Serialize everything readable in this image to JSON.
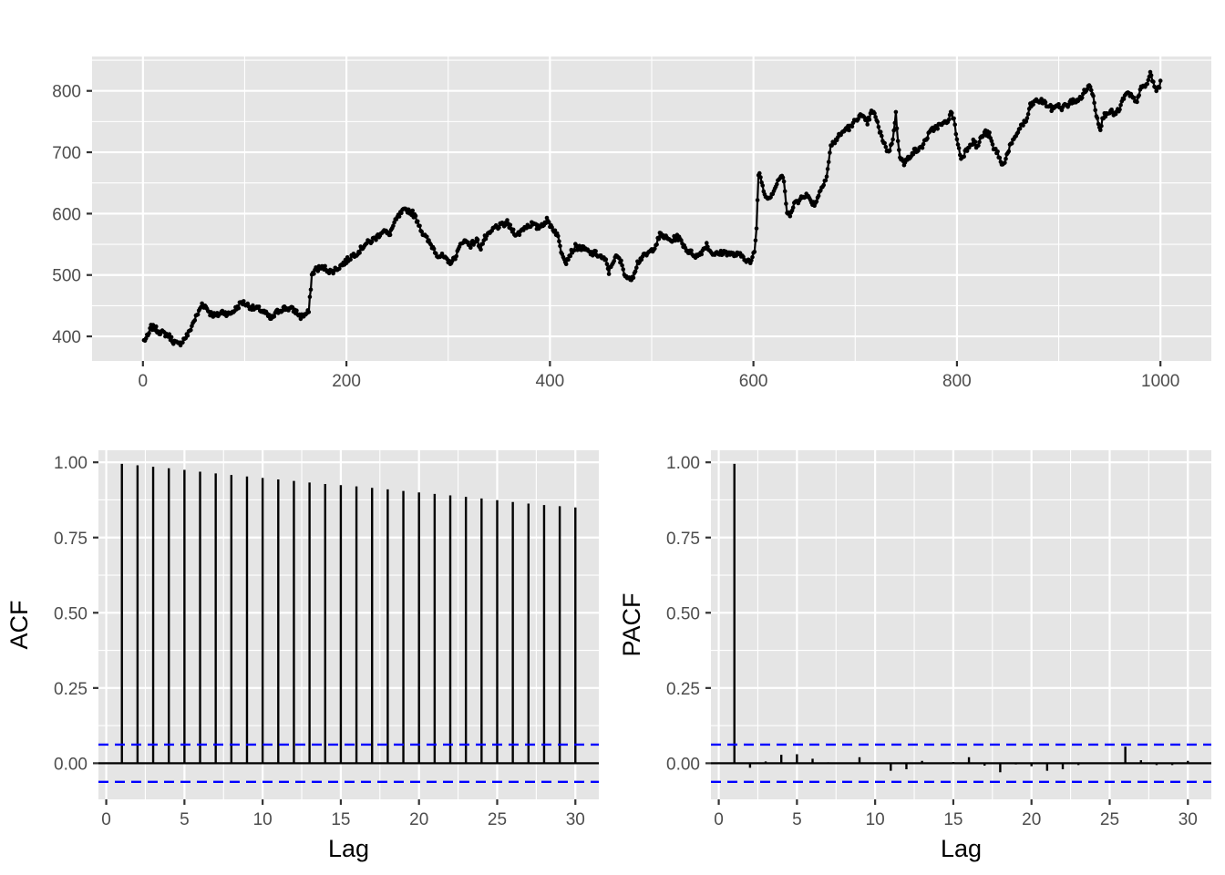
{
  "chart_data": [
    {
      "type": "line",
      "title": "",
      "xlabel": "",
      "ylabel": "",
      "xlim": [
        -50,
        1050
      ],
      "ylim": [
        360,
        856
      ],
      "x_ticks": [
        0,
        200,
        400,
        600,
        800,
        1000
      ],
      "y_ticks": [
        400,
        500,
        600,
        700,
        800
      ],
      "grid": true,
      "markers": true,
      "n_points": 1000,
      "series": [
        {
          "values_by_x": [
            [
              1,
              393
            ],
            [
              5,
              400
            ],
            [
              8,
              415
            ],
            [
              12,
              413
            ],
            [
              16,
              408
            ],
            [
              20,
              405
            ],
            [
              25,
              402
            ],
            [
              30,
              392
            ],
            [
              35,
              386
            ],
            [
              40,
              395
            ],
            [
              45,
              405
            ],
            [
              50,
              425
            ],
            [
              55,
              440
            ],
            [
              58,
              453
            ],
            [
              62,
              448
            ],
            [
              66,
              438
            ],
            [
              72,
              433
            ],
            [
              78,
              440
            ],
            [
              85,
              436
            ],
            [
              92,
              446
            ],
            [
              97,
              456
            ],
            [
              102,
              452
            ],
            [
              108,
              446
            ],
            [
              115,
              444
            ],
            [
              120,
              438
            ],
            [
              126,
              428
            ],
            [
              132,
              440
            ],
            [
              138,
              446
            ],
            [
              145,
              445
            ],
            [
              150,
              441
            ],
            [
              155,
              432
            ],
            [
              160,
              436
            ],
            [
              163,
              440
            ],
            [
              166,
              500
            ],
            [
              170,
              510
            ],
            [
              178,
              512
            ],
            [
              185,
              505
            ],
            [
              192,
              512
            ],
            [
              200,
              523
            ],
            [
              206,
              532
            ],
            [
              212,
              538
            ],
            [
              218,
              550
            ],
            [
              224,
              555
            ],
            [
              230,
              562
            ],
            [
              236,
              573
            ],
            [
              242,
              565
            ],
            [
              246,
              580
            ],
            [
              250,
              593
            ],
            [
              255,
              603
            ],
            [
              260,
              606
            ],
            [
              265,
              601
            ],
            [
              270,
              588
            ],
            [
              275,
              568
            ],
            [
              280,
              556
            ],
            [
              285,
              545
            ],
            [
              290,
              532
            ],
            [
              295,
              530
            ],
            [
              300,
              520
            ],
            [
              305,
              524
            ],
            [
              310,
              540
            ],
            [
              314,
              556
            ],
            [
              318,
              554
            ],
            [
              322,
              549
            ],
            [
              328,
              557
            ],
            [
              332,
              545
            ],
            [
              336,
              560
            ],
            [
              340,
              565
            ],
            [
              346,
              578
            ],
            [
              352,
              580
            ],
            [
              358,
              585
            ],
            [
              362,
              575
            ],
            [
              368,
              565
            ],
            [
              375,
              578
            ],
            [
              382,
              583
            ],
            [
              388,
              577
            ],
            [
              392,
              582
            ],
            [
              397,
              589
            ],
            [
              402,
              578
            ],
            [
              407,
              567
            ],
            [
              411,
              540
            ],
            [
              416,
              522
            ],
            [
              420,
              535
            ],
            [
              425,
              546
            ],
            [
              430,
              544
            ],
            [
              435,
              541
            ],
            [
              440,
              535
            ],
            [
              445,
              535
            ],
            [
              450,
              530
            ],
            [
              455,
              522
            ],
            [
              458,
              505
            ],
            [
              462,
              523
            ],
            [
              466,
              530
            ],
            [
              470,
              520
            ],
            [
              474,
              500
            ],
            [
              478,
              492
            ],
            [
              482,
              500
            ],
            [
              486,
              520
            ],
            [
              490,
              528
            ],
            [
              495,
              533
            ],
            [
              500,
              540
            ],
            [
              505,
              552
            ],
            [
              508,
              565
            ],
            [
              512,
              563
            ],
            [
              516,
              558
            ],
            [
              520,
              556
            ],
            [
              525,
              563
            ],
            [
              530,
              552
            ],
            [
              535,
              540
            ],
            [
              540,
              535
            ],
            [
              545,
              530
            ],
            [
              550,
              540
            ],
            [
              554,
              550
            ],
            [
              558,
              538
            ],
            [
              562,
              534
            ],
            [
              566,
              534
            ],
            [
              570,
              537
            ],
            [
              575,
              536
            ],
            [
              580,
              533
            ],
            [
              585,
              533
            ],
            [
              590,
              530
            ],
            [
              594,
              524
            ],
            [
              598,
              520
            ],
            [
              601,
              540
            ],
            [
              603,
              575
            ],
            [
              605,
              667
            ],
            [
              607,
              660
            ],
            [
              610,
              638
            ],
            [
              614,
              625
            ],
            [
              618,
              632
            ],
            [
              622,
              645
            ],
            [
              626,
              660
            ],
            [
              630,
              655
            ],
            [
              633,
              598
            ],
            [
              636,
              600
            ],
            [
              640,
              618
            ],
            [
              644,
              618
            ],
            [
              648,
              630
            ],
            [
              652,
              630
            ],
            [
              656,
              622
            ],
            [
              660,
              615
            ],
            [
              664,
              630
            ],
            [
              668,
              648
            ],
            [
              672,
              660
            ],
            [
              676,
              710
            ],
            [
              680,
              718
            ],
            [
              684,
              726
            ],
            [
              688,
              733
            ],
            [
              692,
              740
            ],
            [
              696,
              740
            ],
            [
              700,
              752
            ],
            [
              704,
              760
            ],
            [
              708,
              755
            ],
            [
              712,
              748
            ],
            [
              716,
              765
            ],
            [
              720,
              760
            ],
            [
              724,
              733
            ],
            [
              728,
              718
            ],
            [
              732,
              700
            ],
            [
              736,
              712
            ],
            [
              740,
              762
            ],
            [
              742,
              720
            ],
            [
              744,
              695
            ],
            [
              748,
              680
            ],
            [
              752,
              690
            ],
            [
              756,
              700
            ],
            [
              760,
              703
            ],
            [
              764,
              705
            ],
            [
              770,
              723
            ],
            [
              775,
              735
            ],
            [
              780,
              742
            ],
            [
              786,
              745
            ],
            [
              790,
              750
            ],
            [
              795,
              765
            ],
            [
              798,
              745
            ],
            [
              800,
              720
            ],
            [
              804,
              690
            ],
            [
              808,
              700
            ],
            [
              812,
              712
            ],
            [
              816,
              718
            ],
            [
              820,
              708
            ],
            [
              824,
              725
            ],
            [
              828,
              732
            ],
            [
              832,
              728
            ],
            [
              836,
              705
            ],
            [
              840,
              700
            ],
            [
              844,
              678
            ],
            [
              848,
              690
            ],
            [
              852,
              710
            ],
            [
              856,
              718
            ],
            [
              860,
              735
            ],
            [
              864,
              745
            ],
            [
              868,
              750
            ],
            [
              872,
              775
            ],
            [
              876,
              782
            ],
            [
              880,
              784
            ],
            [
              885,
              782
            ],
            [
              890,
              775
            ],
            [
              894,
              770
            ],
            [
              898,
              778
            ],
            [
              902,
              772
            ],
            [
              906,
              775
            ],
            [
              910,
              778
            ],
            [
              914,
              785
            ],
            [
              918,
              782
            ],
            [
              922,
              790
            ],
            [
              926,
              800
            ],
            [
              930,
              808
            ],
            [
              934,
              795
            ],
            [
              937,
              760
            ],
            [
              941,
              740
            ],
            [
              944,
              758
            ],
            [
              948,
              767
            ],
            [
              952,
              765
            ],
            [
              956,
              762
            ],
            [
              960,
              770
            ],
            [
              964,
              790
            ],
            [
              968,
              795
            ],
            [
              972,
              790
            ],
            [
              976,
              780
            ],
            [
              980,
              802
            ],
            [
              984,
              806
            ],
            [
              988,
              815
            ],
            [
              990,
              830
            ],
            [
              993,
              812
            ],
            [
              996,
              800
            ],
            [
              1000,
              812
            ]
          ]
        }
      ]
    },
    {
      "type": "bar",
      "title": "",
      "xlabel": "Lag",
      "ylabel": "ACF",
      "xlim": [
        -0.5,
        31.5
      ],
      "ylim": [
        -0.12,
        1.04
      ],
      "x_ticks": [
        0,
        5,
        10,
        15,
        20,
        25,
        30
      ],
      "y_ticks": [
        0.0,
        0.25,
        0.5,
        0.75,
        1.0
      ],
      "y_tick_labels": [
        "0.00",
        "0.25",
        "0.50",
        "0.75",
        "1.00"
      ],
      "x_tick_labels": [
        "0",
        "5",
        "10",
        "15",
        "20",
        "25",
        "30"
      ],
      "lags": [
        1,
        2,
        3,
        4,
        5,
        6,
        7,
        8,
        9,
        10,
        11,
        12,
        13,
        14,
        15,
        16,
        17,
        18,
        19,
        20,
        21,
        22,
        23,
        24,
        25,
        26,
        27,
        28,
        29,
        30
      ],
      "values": [
        0.995,
        0.99,
        0.985,
        0.98,
        0.975,
        0.969,
        0.963,
        0.958,
        0.953,
        0.948,
        0.943,
        0.938,
        0.933,
        0.928,
        0.924,
        0.92,
        0.915,
        0.91,
        0.905,
        0.9,
        0.895,
        0.89,
        0.885,
        0.88,
        0.874,
        0.868,
        0.863,
        0.858,
        0.854,
        0.85
      ],
      "confidence_band": [
        -0.062,
        0.062
      ],
      "grid": true
    },
    {
      "type": "bar",
      "title": "",
      "xlabel": "Lag",
      "ylabel": "PACF",
      "xlim": [
        -0.5,
        31.5
      ],
      "ylim": [
        -0.12,
        1.04
      ],
      "x_ticks": [
        0,
        5,
        10,
        15,
        20,
        25,
        30
      ],
      "y_ticks": [
        0.0,
        0.25,
        0.5,
        0.75,
        1.0
      ],
      "y_tick_labels": [
        "0.00",
        "0.25",
        "0.50",
        "0.75",
        "1.00"
      ],
      "x_tick_labels": [
        "0",
        "5",
        "10",
        "15",
        "20",
        "25",
        "30"
      ],
      "lags": [
        1,
        2,
        3,
        4,
        5,
        6,
        7,
        8,
        9,
        10,
        11,
        12,
        13,
        14,
        15,
        16,
        17,
        18,
        19,
        20,
        21,
        22,
        23,
        24,
        25,
        26,
        27,
        28,
        29,
        30
      ],
      "values": [
        0.995,
        -0.015,
        0.006,
        0.028,
        0.03,
        0.015,
        0.003,
        0.0,
        0.02,
        0.0,
        -0.025,
        -0.02,
        0.008,
        0.0,
        0.004,
        0.02,
        -0.008,
        -0.03,
        -0.004,
        -0.01,
        -0.025,
        -0.02,
        -0.006,
        -0.003,
        0.0,
        0.055,
        0.01,
        -0.006,
        -0.006,
        0.008
      ],
      "confidence_band": [
        -0.062,
        0.062
      ],
      "grid": true
    }
  ]
}
